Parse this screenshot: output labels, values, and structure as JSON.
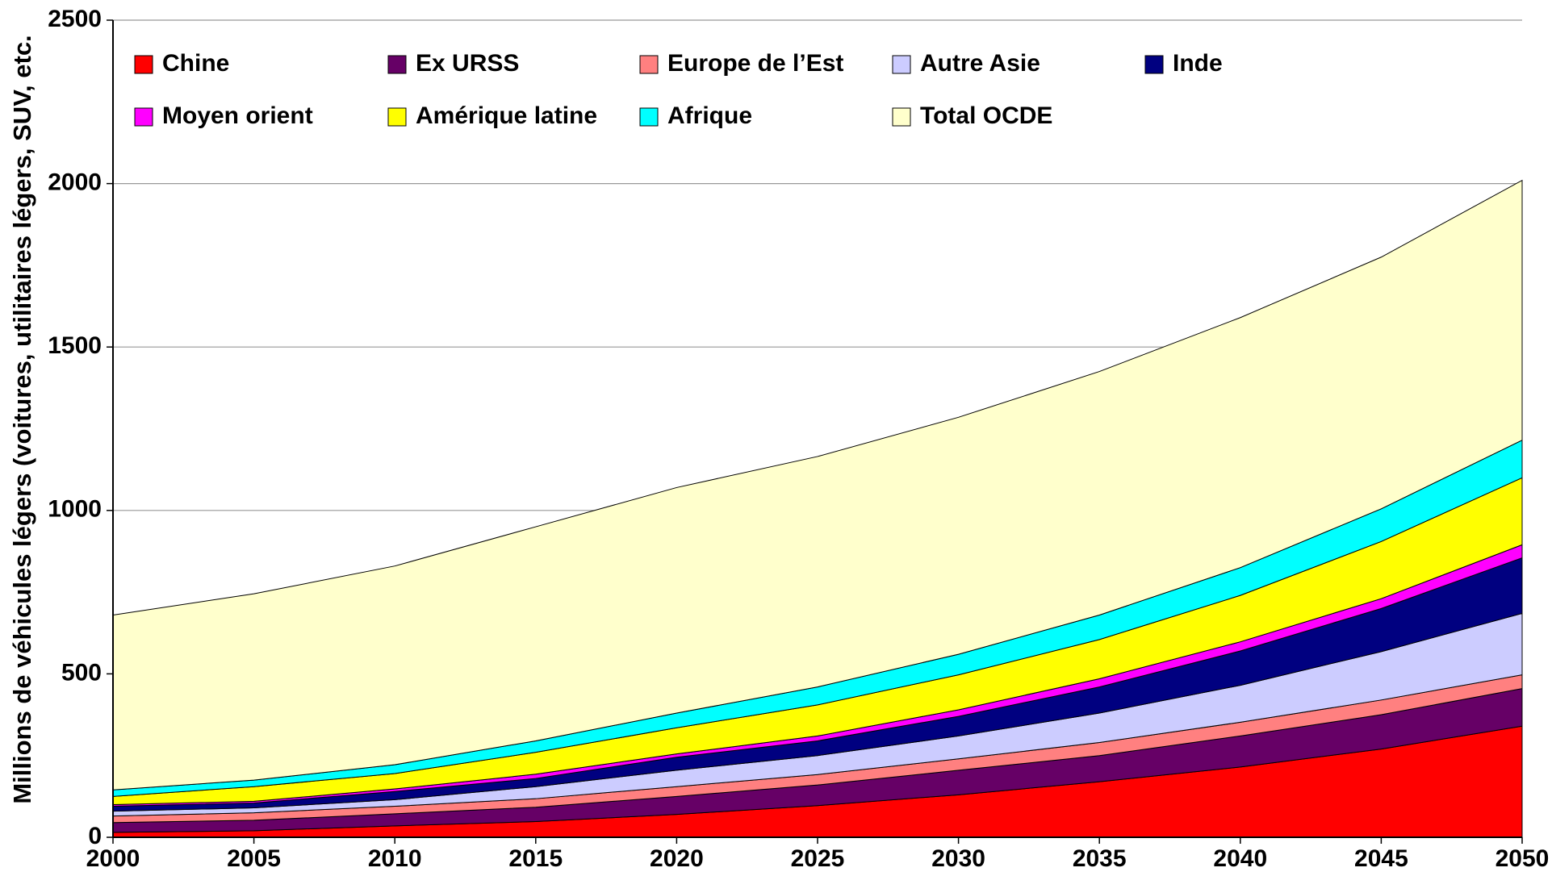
{
  "chart_data": {
    "type": "stacked_area",
    "ylabel": "Millions de véhicules légers (voitures, utilitaires légers, SUV, etc.",
    "x": [
      2000,
      2005,
      2010,
      2015,
      2020,
      2025,
      2030,
      2035,
      2040,
      2045,
      2050
    ],
    "xlim": [
      2000,
      2050
    ],
    "xticks": [
      2000,
      2005,
      2010,
      2015,
      2020,
      2025,
      2030,
      2035,
      2040,
      2045,
      2050
    ],
    "ylim": [
      0,
      2500
    ],
    "yticks": [
      0,
      500,
      1000,
      1500,
      2000,
      2500
    ],
    "grid": true,
    "series": [
      {
        "name": "Chine",
        "color": "#ff0000",
        "values": [
          15,
          20,
          35,
          48,
          70,
          97,
          130,
          170,
          215,
          270,
          340
        ]
      },
      {
        "name": "Ex URSS",
        "color": "#660066",
        "values": [
          30,
          32,
          37,
          44,
          55,
          63,
          75,
          80,
          95,
          105,
          115
        ]
      },
      {
        "name": "Europe de l’Est",
        "color": "#ff8080",
        "values": [
          20,
          23,
          23,
          26,
          30,
          32,
          35,
          40,
          42,
          45,
          42
        ]
      },
      {
        "name": "Autre Asie",
        "color": "#ccccff",
        "values": [
          15,
          15,
          20,
          37,
          50,
          58,
          70,
          90,
          113,
          148,
          188
        ]
      },
      {
        "name": "Inde",
        "color": "#000080",
        "values": [
          15,
          15,
          25,
          25,
          40,
          45,
          60,
          80,
          105,
          132,
          170
        ]
      },
      {
        "name": "Moyen orient",
        "color": "#ff00ff",
        "values": [
          5,
          5,
          8,
          13,
          10,
          15,
          20,
          25,
          28,
          30,
          40
        ]
      },
      {
        "name": "Amérique latine",
        "color": "#ffff00",
        "values": [
          25,
          45,
          47,
          67,
          80,
          95,
          107,
          120,
          142,
          175,
          205
        ]
      },
      {
        "name": "Afrique",
        "color": "#00ffff",
        "values": [
          20,
          20,
          27,
          35,
          45,
          55,
          63,
          75,
          85,
          100,
          115
        ]
      },
      {
        "name": "Total OCDE",
        "color": "#ffffcc",
        "values": [
          535,
          570,
          608,
          655,
          690,
          705,
          725,
          745,
          765,
          770,
          795
        ]
      }
    ]
  }
}
